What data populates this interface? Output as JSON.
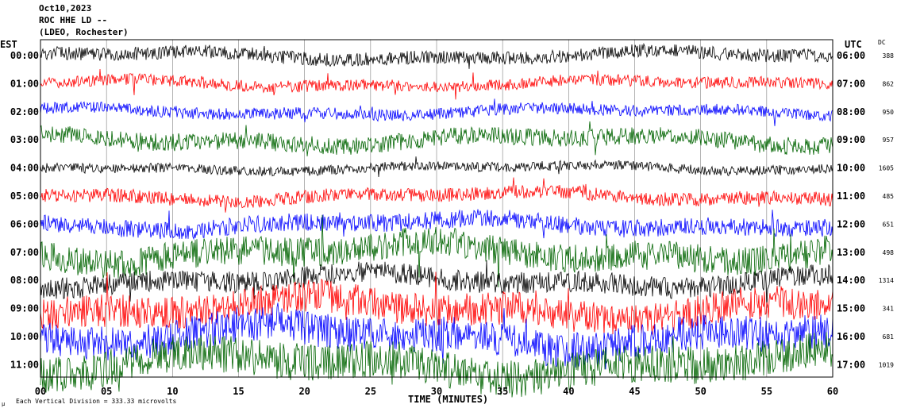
{
  "header": {
    "date": "Oct10,2023",
    "station": "ROC HHE LD --",
    "location": "(LDEO, Rochester)"
  },
  "left_axis_title": "EST",
  "right_axis_title": "UTC",
  "dc_title": "DC",
  "footer": {
    "scale_note": "Each Vertical Division = 333.33 microvolts",
    "corner_mark": "µ"
  },
  "colors": {
    "black": "#000000",
    "red": "#ff0000",
    "blue": "#0000ff",
    "green": "#006400",
    "grid": "#808080"
  },
  "chart_data": {
    "type": "line",
    "title": "ROC HHE LD --",
    "xlabel": "TIME (MINUTES)",
    "ylabel": "",
    "xlim": [
      0,
      60
    ],
    "x_ticks": [
      "00",
      "05",
      "10",
      "15",
      "20",
      "25",
      "30",
      "35",
      "40",
      "45",
      "50",
      "55",
      "60"
    ],
    "rows": [
      {
        "est": "00:00",
        "utc": "06:00",
        "dc": "388",
        "color": "black",
        "amplitude": 0.35
      },
      {
        "est": "01:00",
        "utc": "07:00",
        "dc": "862",
        "color": "red",
        "amplitude": 0.3
      },
      {
        "est": "02:00",
        "utc": "08:00",
        "dc": "950",
        "color": "blue",
        "amplitude": 0.3
      },
      {
        "est": "03:00",
        "utc": "09:00",
        "dc": "957",
        "color": "green",
        "amplitude": 0.45
      },
      {
        "est": "04:00",
        "utc": "10:00",
        "dc": "1605",
        "color": "black",
        "amplitude": 0.25
      },
      {
        "est": "05:00",
        "utc": "11:00",
        "dc": "485",
        "color": "red",
        "amplitude": 0.35
      },
      {
        "est": "06:00",
        "utc": "12:00",
        "dc": "651",
        "color": "blue",
        "amplitude": 0.45
      },
      {
        "est": "07:00",
        "utc": "13:00",
        "dc": "498",
        "color": "green",
        "amplitude": 0.75
      },
      {
        "est": "08:00",
        "utc": "14:00",
        "dc": "1314",
        "color": "black",
        "amplitude": 0.55
      },
      {
        "est": "09:00",
        "utc": "15:00",
        "dc": "341",
        "color": "red",
        "amplitude": 0.85
      },
      {
        "est": "10:00",
        "utc": "16:00",
        "dc": "681",
        "color": "blue",
        "amplitude": 0.9
      },
      {
        "est": "11:00",
        "utc": "17:00",
        "dc": "1019",
        "color": "green",
        "amplitude": 0.95
      }
    ]
  }
}
